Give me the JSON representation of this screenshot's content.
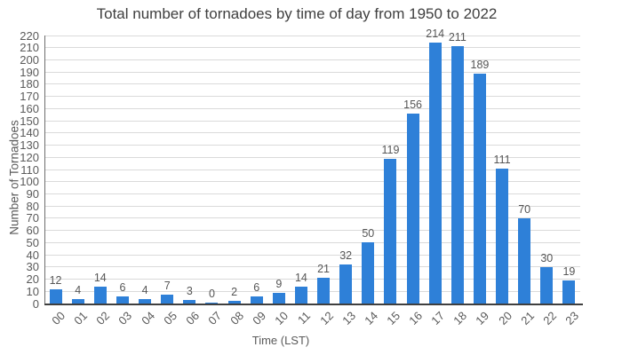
{
  "chart_data": {
    "type": "bar",
    "title": "Total number of tornadoes by time of day from 1950 to 2022",
    "xlabel": "Time (LST)",
    "ylabel": "Number of Tornadoes",
    "categories": [
      "00",
      "01",
      "02",
      "03",
      "04",
      "05",
      "06",
      "07",
      "08",
      "09",
      "10",
      "11",
      "12",
      "13",
      "14",
      "15",
      "16",
      "17",
      "18",
      "19",
      "20",
      "21",
      "22",
      "23"
    ],
    "values": [
      12,
      4,
      14,
      6,
      4,
      7,
      3,
      0,
      2,
      6,
      9,
      14,
      21,
      32,
      50,
      119,
      156,
      214,
      211,
      189,
      111,
      70,
      30,
      19
    ],
    "ylim": [
      0,
      220
    ],
    "yticks": [
      0,
      10,
      20,
      30,
      40,
      50,
      60,
      70,
      80,
      90,
      100,
      110,
      120,
      130,
      140,
      150,
      160,
      170,
      180,
      190,
      200,
      210,
      220
    ],
    "grid": true,
    "legend": "none",
    "value_labels_shown": true,
    "colors": {
      "bar": "#2E80D8",
      "gridline": "#DADADA",
      "x_axis_line": "#3F3F3F",
      "y_axis_line": "#6E6E6E",
      "tick_text": "#5A5A5A",
      "value_text": "#565656",
      "title_text": "#3F3F3F"
    }
  }
}
